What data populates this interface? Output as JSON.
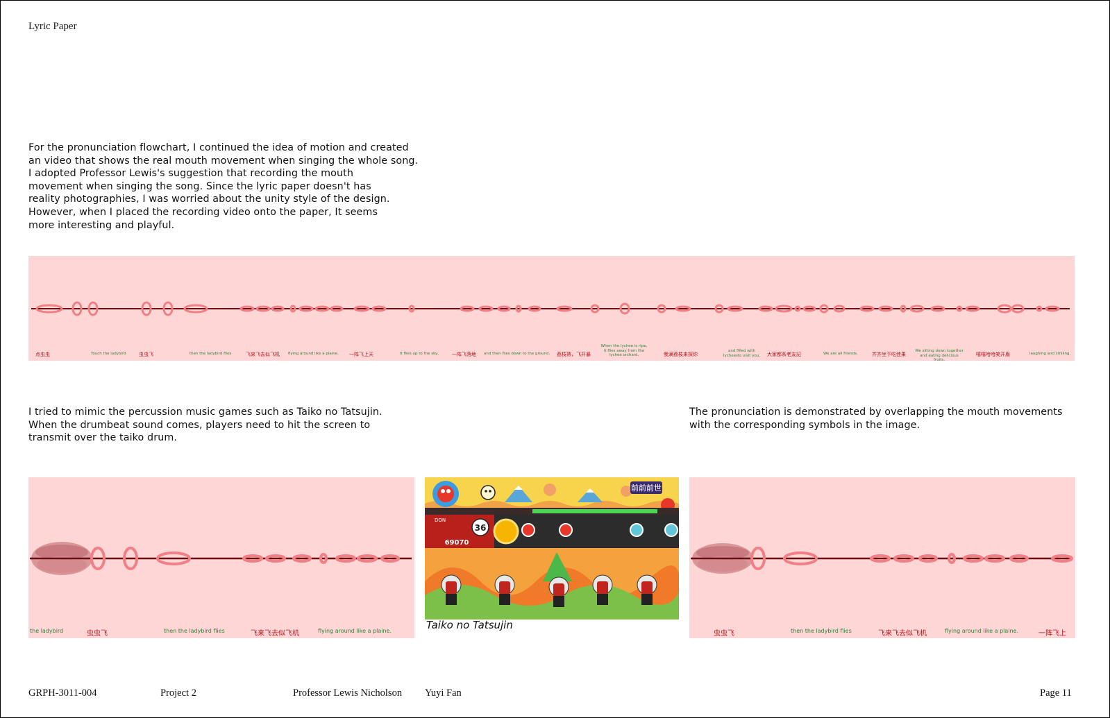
{
  "header": {
    "title": "Lyric Paper"
  },
  "intro_lines": [
    "For the pronunciation flowchart, I continued the idea of motion and created",
    "an video that shows the real mouth movement when singing the whole song.",
    "I adopted Professor Lewis's suggestion that recording the mouth",
    "movement when singing the song. Since the lyric paper doesn't has",
    "reality photographies, I was worried about the unity style of the design.",
    "However, when I placed the recording video onto the paper, It seems",
    "more interesting and playful."
  ],
  "main_strip": {
    "lyrics": [
      {
        "text": "点虫虫",
        "lang": "cn"
      },
      {
        "text": "Touch the ladybird",
        "lang": "en"
      },
      {
        "text": "虫虫飞",
        "lang": "cn"
      },
      {
        "text": "then the ladybird flies",
        "lang": "en"
      },
      {
        "text": "飞来飞去似飞机",
        "lang": "cn"
      },
      {
        "text": "flying around like a plaine.",
        "lang": "en"
      },
      {
        "text": "一阵飞上天",
        "lang": "cn"
      },
      {
        "text": "It flies up to the sky,",
        "lang": "en"
      },
      {
        "text": "一阵飞落地",
        "lang": "cn"
      },
      {
        "text": "and then flies down to the ground.",
        "lang": "en"
      },
      {
        "text": "荔枝熟，飞开暴",
        "lang": "cn"
      },
      {
        "text": "When the lychee is ripe, it flies away from the lychee orchard,",
        "lang": "en"
      },
      {
        "text": "我满荔枝来探你",
        "lang": "cn"
      },
      {
        "text": "and filled with lycheesto visit you.",
        "lang": "en"
      },
      {
        "text": "大家都系老友記",
        "lang": "cn"
      },
      {
        "text": "We are all friends.",
        "lang": "en"
      },
      {
        "text": "齐齐坐下吃佳果",
        "lang": "cn"
      },
      {
        "text": "We sitting down together and eating delicious fruits,",
        "lang": "en"
      },
      {
        "text": "嘻嘻哈哈笑开眉",
        "lang": "cn"
      },
      {
        "text": "laughing and smiling.",
        "lang": "en"
      }
    ]
  },
  "game_para_lines": [
    "I tried to mimic the percussion music games such as Taiko no Tatsujin.",
    "When the drumbeat sound comes, players need to hit the screen to",
    "transmit over the taiko drum."
  ],
  "pron_para_lines": [
    "The pronunciation is demonstrated by overlapping the mouth movements",
    "with the corresponding symbols in the image."
  ],
  "left_strip": {
    "lyrics": [
      {
        "text": "the ladybird",
        "lang": "en"
      },
      {
        "text": "虫虫飞",
        "lang": "cn"
      },
      {
        "text": "then the ladybird flies",
        "lang": "en"
      },
      {
        "text": "飞来飞去似飞机",
        "lang": "cn"
      },
      {
        "text": "flying around like a plaine.",
        "lang": "en"
      }
    ]
  },
  "right_strip": {
    "lyrics": [
      {
        "text": "虫虫飞",
        "lang": "cn"
      },
      {
        "text": "then the ladybird flies",
        "lang": "en"
      },
      {
        "text": "飞来飞去似飞机",
        "lang": "cn"
      },
      {
        "text": "flying around like a plaine.",
        "lang": "en"
      },
      {
        "text": "一阵飞上",
        "lang": "cn"
      }
    ]
  },
  "taiko": {
    "caption": "Taiko no Tatsujin",
    "title_kanji": "前前前世",
    "player_label": "DON",
    "combo": "36",
    "score": "69070"
  },
  "footer": {
    "course": "GRPH-3011-004",
    "project": "Project 2",
    "professor": "Professor Lewis Nicholson",
    "student": "Yuyi Fan",
    "page": "Page 11"
  },
  "colors": {
    "strip_bg": "#ffd6d6",
    "line": "#6b1010",
    "symbol": "#f07f86",
    "cn_text": "#b0141c",
    "en_text": "#2f7d3a"
  }
}
